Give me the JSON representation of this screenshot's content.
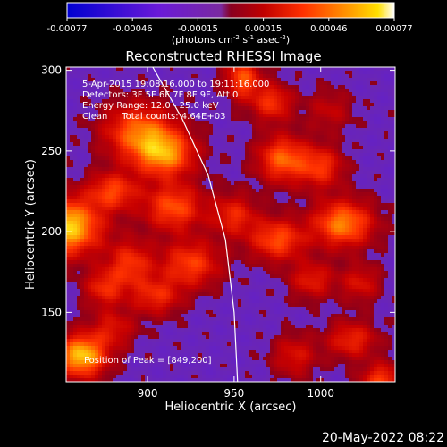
{
  "chart_data": {
    "type": "heatmap",
    "title": "Reconstructed RHESSI Image",
    "xlabel": "Heliocentric X (arcsec)",
    "ylabel": "Heliocentric Y (arcsec)",
    "xlim": [
      853,
      1043
    ],
    "ylim": [
      107,
      302
    ],
    "x_ticks": [
      900,
      950,
      1000
    ],
    "y_ticks": [
      150,
      200,
      250,
      300
    ],
    "colorbar": {
      "ticks": [
        "-0.00077",
        "-0.00046",
        "-0.00015",
        "0.00015",
        "0.00046",
        "0.00077"
      ],
      "range": [
        -0.00077,
        0.00077
      ],
      "unit_label_parts": [
        "(photons cm",
        "-2",
        " s",
        "-1",
        " asec",
        "-2",
        ")"
      ]
    },
    "info_lines": [
      "5-Apr-2015 19:08:16.000 to 19:11:16.000",
      "Detectors: 3F 5F 6F 7F 8F 9F, Att 0",
      "Energy Range: 12.0 - 25.0 keV",
      "Clean     Total counts: 4.64E+03"
    ],
    "peak_label": "Position of Peak = [849,200]",
    "peak_position": [
      849,
      200
    ],
    "limb_curve": [
      [
        903,
        302
      ],
      [
        920,
        270
      ],
      [
        935,
        235
      ],
      [
        945,
        195
      ],
      [
        950,
        150
      ],
      [
        952,
        107
      ]
    ],
    "hotspots": [
      {
        "x": 853,
        "y": 203,
        "amp": 1.0,
        "sx": 14,
        "sy": 12
      },
      {
        "x": 862,
        "y": 123,
        "amp": 0.95,
        "sx": 10,
        "sy": 9
      },
      {
        "x": 895,
        "y": 262,
        "amp": 0.65,
        "sx": 14,
        "sy": 12
      },
      {
        "x": 910,
        "y": 248,
        "amp": 0.75,
        "sx": 12,
        "sy": 10
      },
      {
        "x": 880,
        "y": 225,
        "amp": 0.55,
        "sx": 10,
        "sy": 8
      },
      {
        "x": 915,
        "y": 215,
        "amp": 0.6,
        "sx": 12,
        "sy": 10
      },
      {
        "x": 890,
        "y": 180,
        "amp": 0.5,
        "sx": 9,
        "sy": 10
      },
      {
        "x": 925,
        "y": 180,
        "amp": 0.55,
        "sx": 12,
        "sy": 10
      },
      {
        "x": 905,
        "y": 160,
        "amp": 0.45,
        "sx": 10,
        "sy": 8
      },
      {
        "x": 880,
        "y": 140,
        "amp": 0.35,
        "sx": 9,
        "sy": 8
      },
      {
        "x": 875,
        "y": 165,
        "amp": 0.45,
        "sx": 8,
        "sy": 8
      },
      {
        "x": 955,
        "y": 295,
        "amp": 0.6,
        "sx": 7,
        "sy": 9
      },
      {
        "x": 972,
        "y": 280,
        "amp": 0.5,
        "sx": 8,
        "sy": 8
      },
      {
        "x": 978,
        "y": 245,
        "amp": 0.65,
        "sx": 10,
        "sy": 10
      },
      {
        "x": 1000,
        "y": 240,
        "amp": 0.5,
        "sx": 9,
        "sy": 9
      },
      {
        "x": 1013,
        "y": 205,
        "amp": 0.75,
        "sx": 12,
        "sy": 10
      },
      {
        "x": 975,
        "y": 195,
        "amp": 0.6,
        "sx": 11,
        "sy": 9
      },
      {
        "x": 950,
        "y": 210,
        "amp": 0.45,
        "sx": 9,
        "sy": 9
      },
      {
        "x": 995,
        "y": 170,
        "amp": 0.4,
        "sx": 9,
        "sy": 8
      },
      {
        "x": 1023,
        "y": 168,
        "amp": 0.35,
        "sx": 8,
        "sy": 8
      },
      {
        "x": 1018,
        "y": 133,
        "amp": 0.45,
        "sx": 10,
        "sy": 8
      },
      {
        "x": 1035,
        "y": 108,
        "amp": 0.55,
        "sx": 8,
        "sy": 7
      },
      {
        "x": 985,
        "y": 123,
        "amp": 0.35,
        "sx": 9,
        "sy": 9
      },
      {
        "x": 1005,
        "y": 275,
        "amp": 0.25,
        "sx": 9,
        "sy": 9
      }
    ]
  },
  "footer": {
    "date": "20-May-2022 08:22"
  }
}
